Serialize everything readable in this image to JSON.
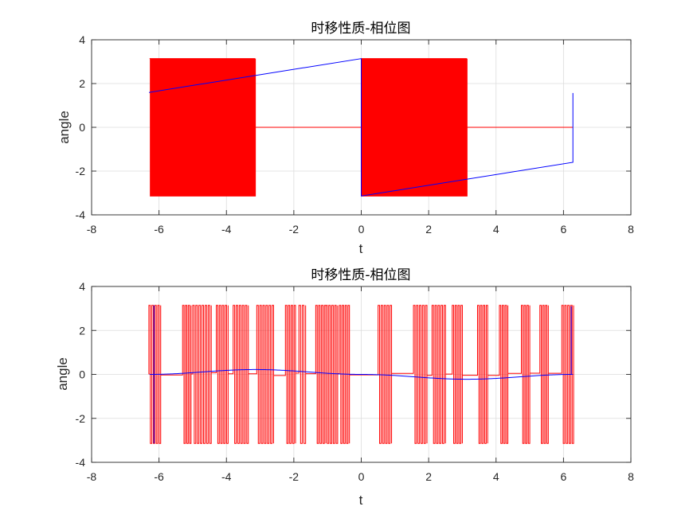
{
  "colors": {
    "series_a": "#ff0000",
    "series_b": "#0000ff",
    "grid": "#dcdcdc",
    "axes": "#262626"
  },
  "chart_data": [
    {
      "type": "line",
      "title": "时移性质-相位图",
      "xlabel": "t",
      "ylabel": "angle",
      "xlim": [
        -8,
        8
      ],
      "ylim": [
        -4,
        4
      ],
      "xticks": [
        -8,
        -6,
        -4,
        -2,
        0,
        2,
        4,
        6,
        8
      ],
      "yticks": [
        -4,
        -2,
        0,
        2,
        4
      ],
      "grid": true,
      "series": [
        {
          "color": "#ff0000",
          "style": "oscillating",
          "segments": [
            {
              "kind": "osc",
              "x": [
                -6.28,
                -3.14
              ],
              "low": -3.14,
              "high": 3.14,
              "transitions": 150
            },
            {
              "kind": "flat",
              "x": [
                -3.14,
                0.0
              ],
              "y": 0
            },
            {
              "kind": "osc",
              "x": [
                0.0,
                3.14
              ],
              "low": -3.14,
              "high": 3.14,
              "transitions": 150
            },
            {
              "kind": "flat",
              "x": [
                3.14,
                6.28
              ],
              "y": 0
            }
          ]
        },
        {
          "color": "#0000ff",
          "style": "polyline",
          "points": [
            [
              -6.28,
              1.57
            ],
            [
              -6.28,
              1.6
            ],
            [
              0.0,
              3.14
            ],
            [
              0.0,
              -3.14
            ],
            [
              6.28,
              -1.6
            ],
            [
              6.28,
              1.57
            ]
          ]
        }
      ]
    },
    {
      "type": "line",
      "title": "时移性质-相位图",
      "xlabel": "t",
      "ylabel": "angle",
      "xlim": [
        -8,
        8
      ],
      "ylim": [
        -4,
        4
      ],
      "xticks": [
        -8,
        -6,
        -4,
        -2,
        0,
        2,
        4,
        6,
        8
      ],
      "yticks": [
        -4,
        -2,
        0,
        2,
        4
      ],
      "grid": true,
      "series": [
        {
          "color": "#ff0000",
          "style": "bursts",
          "bursts": [
            [
              -6.3,
              -5.95
            ],
            [
              -5.3,
              -5.05
            ],
            [
              -5.0,
              -4.45
            ],
            [
              -4.3,
              -3.95
            ],
            [
              -3.8,
              -3.35
            ],
            [
              -3.1,
              -2.6
            ],
            [
              -2.25,
              -1.95
            ],
            [
              -1.85,
              -1.65
            ],
            [
              -1.35,
              -1.05
            ],
            [
              -1.05,
              -0.7
            ],
            [
              -0.65,
              -0.35
            ],
            [
              0.5,
              0.9
            ],
            [
              1.55,
              1.95
            ],
            [
              2.1,
              2.5
            ],
            [
              2.7,
              3.0
            ],
            [
              3.45,
              3.75
            ],
            [
              4.1,
              4.35
            ],
            [
              4.75,
              5.0
            ],
            [
              5.3,
              5.55
            ],
            [
              5.95,
              6.3
            ]
          ],
          "between_y": 0.0,
          "low": -3.14,
          "high": 3.14
        },
        {
          "color": "#0000ff",
          "style": "smooth",
          "amplitude": 0.22,
          "x_range": [
            -6.28,
            6.28
          ],
          "spike_x": -6.15
        }
      ]
    }
  ]
}
